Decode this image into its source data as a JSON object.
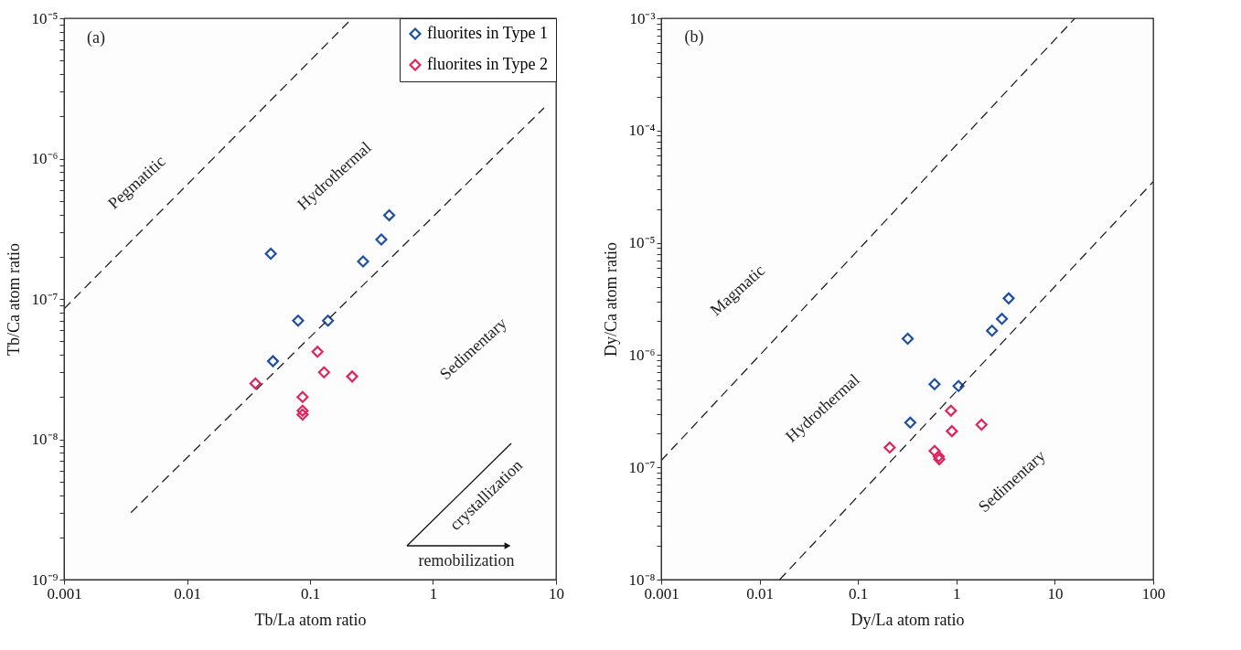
{
  "chart_data": [
    {
      "type": "scatter",
      "xlabel": "Tb/La atom ratio",
      "ylabel": "Tb/Ca atom ratio",
      "log": "xy",
      "marker": "diamond",
      "grid": false,
      "legend": "top right",
      "xlim": [
        0.001,
        10
      ],
      "xticks": [
        0.001,
        0.01,
        0.1,
        1,
        10
      ],
      "ylim": [
        1e-09,
        1e-05
      ],
      "yticks": [
        {
          "value": 1e-09,
          "label": "10⁻⁹"
        },
        {
          "value": 2e-09,
          "label": null
        },
        {
          "value": 3e-09,
          "label": null
        },
        {
          "value": 4e-09,
          "label": null
        },
        {
          "value": 5e-09,
          "label": null
        },
        {
          "value": 6e-09,
          "label": null
        },
        {
          "value": 7e-09,
          "label": null
        },
        {
          "value": 8e-09,
          "label": null
        },
        {
          "value": 9e-09,
          "label": null
        },
        {
          "value": 1e-08,
          "label": "10⁻⁸"
        },
        {
          "value": 2e-08,
          "label": null
        },
        {
          "value": 3e-08,
          "label": null
        },
        {
          "value": 4e-08,
          "label": null
        },
        {
          "value": 5e-08,
          "label": null
        },
        {
          "value": 6e-08,
          "label": null
        },
        {
          "value": 7e-08,
          "label": null
        },
        {
          "value": 8e-08,
          "label": null
        },
        {
          "value": 9e-08,
          "label": null
        },
        {
          "value": 1e-07,
          "label": "10⁻⁷"
        },
        {
          "value": 2e-07,
          "label": null
        },
        {
          "value": 3e-07,
          "label": null
        },
        {
          "value": 4e-07,
          "label": null
        },
        {
          "value": 5e-07,
          "label": null
        },
        {
          "value": 6e-07,
          "label": null
        },
        {
          "value": 7e-07,
          "label": null
        },
        {
          "value": 8e-07,
          "label": null
        },
        {
          "value": 9e-07,
          "label": null
        },
        {
          "value": 1e-06,
          "label": "10⁻⁶"
        },
        {
          "value": 2e-06,
          "label": null
        },
        {
          "value": 3e-06,
          "label": null
        },
        {
          "value": 4e-06,
          "label": null
        },
        {
          "value": 5e-06,
          "label": null
        },
        {
          "value": 6e-06,
          "label": null
        },
        {
          "value": 7e-06,
          "label": null
        },
        {
          "value": 8e-06,
          "label": null
        },
        {
          "value": 9e-06,
          "label": null
        },
        {
          "value": 1e-05,
          "label": "10⁻⁵"
        }
      ],
      "annotations": [
        "(a)",
        "Pegmatitic",
        "Hydrothermal",
        "Sedimentary",
        "crystallization",
        "remobilization"
      ],
      "series": [
        {
          "name": "fluorites in Type 1",
          "color": "#1f4fa3",
          "x": [
            0.048,
            0.08,
            0.14,
            0.05,
            0.27,
            0.38,
            0.44
          ],
          "values": [
            2.1e-07,
            7e-08,
            7e-08,
            3.6e-08,
            1.85e-07,
            2.65e-07,
            3.95e-07
          ]
        },
        {
          "name": "fluorites in Type 2",
          "color": "#e0245e",
          "x": [
            0.036,
            0.115,
            0.13,
            0.22,
            0.087,
            0.087,
            0.087
          ],
          "values": [
            2.5e-08,
            4.2e-08,
            3e-08,
            2.8e-08,
            2e-08,
            1.6e-08,
            1.5e-08
          ]
        },
        {
          "type": "line",
          "color": "#222222",
          "line_style": "dashed",
          "marker": "none",
          "x": [
            0.001,
            0.22
          ],
          "values": [
            8.5e-08,
            1e-05
          ]
        },
        {
          "type": "line",
          "color": "#222222",
          "line_style": "dashed",
          "marker": "none",
          "x": [
            0.0035,
            8
          ],
          "values": [
            3e-09,
            2.3e-06
          ]
        }
      ]
    },
    {
      "type": "scatter",
      "xlabel": "Dy/La atom ratio",
      "ylabel": "Dy/Ca atom ratio",
      "log": "xy",
      "marker": "diamond",
      "grid": false,
      "legend": false,
      "xlim": [
        0.001,
        100
      ],
      "xticks": [
        0.001,
        0.01,
        0.1,
        1,
        10,
        100
      ],
      "ylim": [
        1e-08,
        0.001
      ],
      "yticks": [
        {
          "value": 1e-08,
          "label": "10⁻⁸"
        },
        {
          "value": 2e-08,
          "label": null
        },
        {
          "value": 3e-08,
          "label": null
        },
        {
          "value": 4e-08,
          "label": null
        },
        {
          "value": 5e-08,
          "label": null
        },
        {
          "value": 6e-08,
          "label": null
        },
        {
          "value": 7e-08,
          "label": null
        },
        {
          "value": 8e-08,
          "label": null
        },
        {
          "value": 9e-08,
          "label": null
        },
        {
          "value": 1e-07,
          "label": "10⁻⁷"
        },
        {
          "value": 2e-07,
          "label": null
        },
        {
          "value": 3e-07,
          "label": null
        },
        {
          "value": 4e-07,
          "label": null
        },
        {
          "value": 5e-07,
          "label": null
        },
        {
          "value": 6e-07,
          "label": null
        },
        {
          "value": 7e-07,
          "label": null
        },
        {
          "value": 8e-07,
          "label": null
        },
        {
          "value": 9e-07,
          "label": null
        },
        {
          "value": 1e-06,
          "label": "10⁻⁶"
        },
        {
          "value": 2e-06,
          "label": null
        },
        {
          "value": 3e-06,
          "label": null
        },
        {
          "value": 4e-06,
          "label": null
        },
        {
          "value": 5e-06,
          "label": null
        },
        {
          "value": 6e-06,
          "label": null
        },
        {
          "value": 7e-06,
          "label": null
        },
        {
          "value": 8e-06,
          "label": null
        },
        {
          "value": 9e-06,
          "label": null
        },
        {
          "value": 1e-05,
          "label": "10⁻⁵"
        },
        {
          "value": 2e-05,
          "label": null
        },
        {
          "value": 3e-05,
          "label": null
        },
        {
          "value": 4e-05,
          "label": null
        },
        {
          "value": 5e-05,
          "label": null
        },
        {
          "value": 6e-05,
          "label": null
        },
        {
          "value": 7e-05,
          "label": null
        },
        {
          "value": 8e-05,
          "label": null
        },
        {
          "value": 9e-05,
          "label": null
        },
        {
          "value": 0.0001,
          "label": "10⁻⁴"
        },
        {
          "value": 0.0002,
          "label": null
        },
        {
          "value": 0.0003,
          "label": null
        },
        {
          "value": 0.0004,
          "label": null
        },
        {
          "value": 0.0005,
          "label": null
        },
        {
          "value": 0.0006,
          "label": null
        },
        {
          "value": 0.0007,
          "label": null
        },
        {
          "value": 0.0008,
          "label": null
        },
        {
          "value": 0.0009,
          "label": null
        },
        {
          "value": 0.001,
          "label": "10⁻³"
        }
      ],
      "annotations": [
        "(b)",
        "Magmatic",
        "Hydrothermal",
        "Sedimentary"
      ],
      "series": [
        {
          "color": "#1f4fa3",
          "x": [
            0.32,
            0.6,
            1.05,
            0.34,
            2.3,
            2.9,
            3.4
          ],
          "values": [
            1.4e-06,
            5.5e-07,
            5.3e-07,
            2.5e-07,
            1.65e-06,
            2.1e-06,
            3.2e-06
          ]
        },
        {
          "color": "#e0245e",
          "x": [
            0.21,
            0.88,
            0.9,
            1.8,
            0.6,
            0.66,
            0.67
          ],
          "values": [
            1.5e-07,
            3.2e-07,
            2.1e-07,
            2.4e-07,
            1.4e-07,
            1.25e-07,
            1.18e-07
          ]
        },
        {
          "type": "line",
          "color": "#222222",
          "line_style": "dashed",
          "marker": "none",
          "x": [
            0.001,
            16
          ],
          "values": [
            1.15e-07,
            0.001
          ]
        },
        {
          "type": "line",
          "color": "#222222",
          "line_style": "dashed",
          "marker": "none",
          "x": [
            0.016,
            100
          ],
          "values": [
            1e-08,
            3.5e-05
          ]
        }
      ]
    }
  ]
}
